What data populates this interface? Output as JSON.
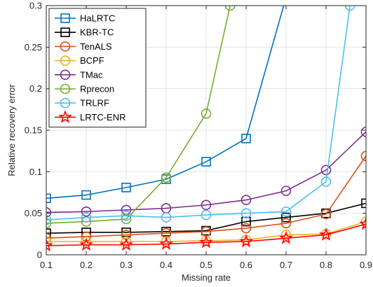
{
  "chart_data": {
    "type": "line",
    "title": "",
    "xlabel": "Missing rate",
    "ylabel": "Relative recovery error",
    "xlim": [
      0.1,
      0.9
    ],
    "ylim": [
      0,
      0.3
    ],
    "x_ticks": [
      "0.1",
      "0.2",
      "0.3",
      "0.4",
      "0.5",
      "0.6",
      "0.7",
      "0.8",
      "0.9"
    ],
    "y_ticks": [
      "0",
      "0.05",
      "0.1",
      "0.15",
      "0.2",
      "0.25",
      "0.3"
    ],
    "grid": true,
    "legend_position": "top-left",
    "series": [
      {
        "name": "HaLRTC",
        "color": "#0072BD",
        "marker": "square",
        "x": [
          0.1,
          0.2,
          0.3,
          0.4,
          0.5,
          0.6,
          0.7
        ],
        "y": [
          0.068,
          0.072,
          0.081,
          0.091,
          0.112,
          0.14,
          0.31
        ]
      },
      {
        "name": "KBR-TC",
        "color": "#000000",
        "marker": "square",
        "x": [
          0.1,
          0.2,
          0.3,
          0.4,
          0.5,
          0.6,
          0.7,
          0.8,
          0.9
        ],
        "y": [
          0.026,
          0.027,
          0.027,
          0.028,
          0.029,
          0.04,
          0.045,
          0.05,
          0.062
        ]
      },
      {
        "name": "TenALS",
        "color": "#D95319",
        "marker": "circle",
        "x": [
          0.1,
          0.2,
          0.3,
          0.4,
          0.5,
          0.6,
          0.7,
          0.8,
          0.9
        ],
        "y": [
          0.02,
          0.022,
          0.024,
          0.026,
          0.028,
          0.032,
          0.038,
          0.049,
          0.119
        ]
      },
      {
        "name": "BCPF",
        "color": "#EDB120",
        "marker": "circle",
        "x": [
          0.1,
          0.2,
          0.3,
          0.4,
          0.5,
          0.6,
          0.7,
          0.8,
          0.9
        ],
        "y": [
          0.016,
          0.016,
          0.016,
          0.016,
          0.017,
          0.018,
          0.024,
          0.025,
          0.04
        ]
      },
      {
        "name": "TMac",
        "color": "#7E2F8E",
        "marker": "circle",
        "x": [
          0.1,
          0.2,
          0.3,
          0.4,
          0.5,
          0.6,
          0.7,
          0.8,
          0.9
        ],
        "y": [
          0.051,
          0.052,
          0.054,
          0.056,
          0.06,
          0.066,
          0.077,
          0.102,
          0.148
        ]
      },
      {
        "name": "Rprecon",
        "color": "#77AC30",
        "marker": "circle",
        "x": [
          0.1,
          0.2,
          0.3,
          0.4,
          0.5,
          0.56
        ],
        "y": [
          0.038,
          0.04,
          0.043,
          0.093,
          0.17,
          0.3
        ]
      },
      {
        "name": "TRLRF",
        "color": "#4DBEEE",
        "marker": "circle",
        "x": [
          0.1,
          0.2,
          0.3,
          0.4,
          0.5,
          0.6,
          0.7,
          0.8,
          0.86
        ],
        "y": [
          0.042,
          0.045,
          0.047,
          0.045,
          0.048,
          0.05,
          0.052,
          0.088,
          0.3
        ]
      },
      {
        "name": "LRTC-ENR",
        "color": "#FF0000",
        "marker": "star",
        "x": [
          0.1,
          0.2,
          0.3,
          0.4,
          0.5,
          0.6,
          0.7,
          0.8,
          0.9
        ],
        "y": [
          0.011,
          0.012,
          0.012,
          0.013,
          0.015,
          0.016,
          0.02,
          0.024,
          0.037
        ]
      }
    ]
  }
}
